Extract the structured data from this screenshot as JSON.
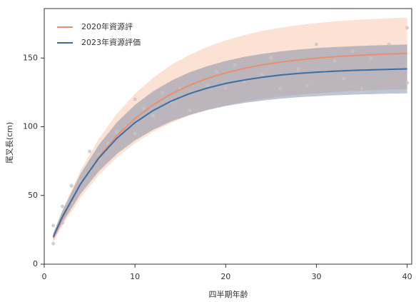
{
  "chart_data": {
    "type": "line",
    "xlabel": "四半期年齢",
    "ylabel": "尾叉長(cm)",
    "x": [
      1,
      2,
      4,
      6,
      8,
      10,
      12,
      14,
      16,
      18,
      20,
      22,
      24,
      26,
      28,
      30,
      32,
      34,
      36,
      38,
      40
    ],
    "series": [
      {
        "name": "2020年資源評",
        "color": "#e8906c",
        "band_color": "#fbd5c2",
        "values": [
          19.1,
          33.6,
          58.2,
          77.9,
          93.5,
          106.0,
          116.0,
          123.9,
          130.2,
          135.2,
          139.2,
          142.4,
          145.0,
          147.0,
          148.6,
          149.9,
          151.0,
          151.8,
          152.4,
          153.0,
          153.4
        ],
        "lower": [
          15.9,
          27.9,
          48.3,
          64.7,
          77.6,
          88.0,
          96.3,
          102.8,
          108.1,
          112.2,
          115.5,
          118.2,
          120.4,
          122.0,
          123.3,
          124.4,
          125.3,
          126.0,
          126.5,
          127.0,
          127.3
        ],
        "upper": [
          22.3,
          39.3,
          68.1,
          91.1,
          109.4,
          124.0,
          135.7,
          145.0,
          152.3,
          158.2,
          162.9,
          166.6,
          169.7,
          172.0,
          173.9,
          175.4,
          176.7,
          177.6,
          178.3,
          179.0,
          179.5
        ]
      },
      {
        "name": "2023年資源評価",
        "color": "#3a6fa6",
        "band_color": "#6f7f9e",
        "values": [
          20.0,
          34.5,
          58.4,
          77.1,
          91.6,
          103.0,
          111.8,
          118.7,
          124.1,
          128.2,
          131.5,
          134.0,
          136.0,
          137.6,
          138.8,
          139.7,
          140.4,
          141.0,
          141.4,
          141.8,
          142.1
        ],
        "lower": [
          17.5,
          30.2,
          51.1,
          67.5,
          80.2,
          90.1,
          97.8,
          103.9,
          108.6,
          112.2,
          115.1,
          117.3,
          119.0,
          120.4,
          121.5,
          122.2,
          122.9,
          123.4,
          123.7,
          124.1,
          124.3
        ],
        "upper": [
          22.5,
          38.8,
          65.7,
          86.7,
          103.1,
          115.9,
          125.8,
          133.5,
          139.6,
          144.2,
          147.9,
          150.8,
          153.0,
          154.8,
          156.2,
          157.2,
          158.0,
          158.6,
          159.1,
          159.5,
          159.9
        ]
      }
    ],
    "points": {
      "color": "#c4c4c4",
      "x": [
        1,
        1,
        2,
        2,
        3,
        3,
        4,
        5,
        5,
        6,
        7,
        8,
        9,
        10,
        10,
        11,
        12,
        13,
        14,
        15,
        16,
        18,
        19,
        20,
        21,
        22,
        24,
        25,
        26,
        28,
        29,
        30,
        31,
        32,
        33,
        34,
        35,
        36,
        38,
        40,
        40
      ],
      "y": [
        15,
        28,
        30,
        42,
        45,
        57,
        60,
        68,
        82,
        80,
        88,
        96,
        100,
        95,
        120,
        113,
        108,
        125,
        118,
        128,
        112,
        130,
        140,
        128,
        145,
        133,
        138,
        150,
        128,
        142,
        130,
        160,
        140,
        148,
        135,
        155,
        128,
        150,
        160,
        172,
        132
      ]
    },
    "xlim": [
      0,
      40.5
    ],
    "ylim": [
      0,
      186
    ],
    "xticks": [
      0,
      10,
      20,
      30,
      40
    ],
    "yticks": [
      0,
      50,
      100,
      150
    ],
    "legend": "upper-left"
  }
}
